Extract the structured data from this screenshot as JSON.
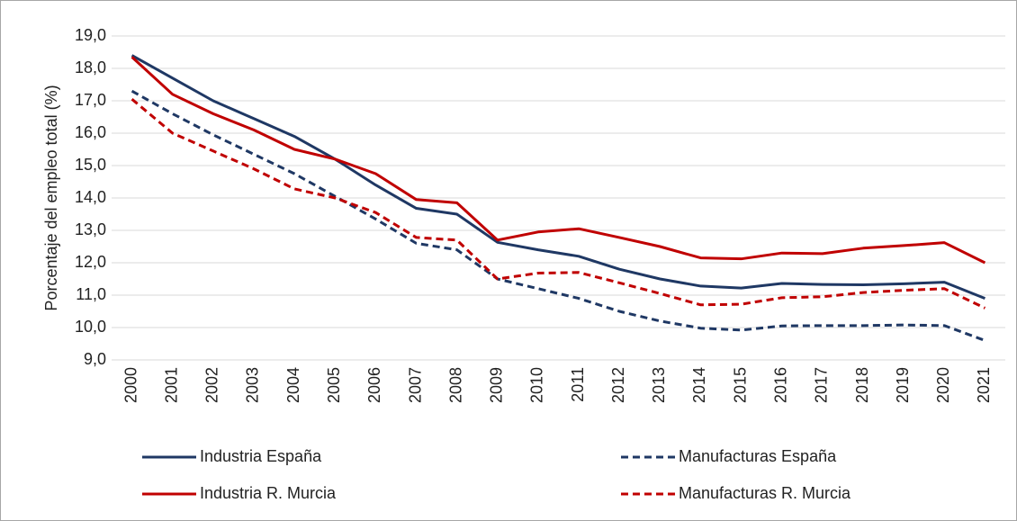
{
  "chart_data": {
    "type": "line",
    "y_label": "Porcentaje del empleo total (%)",
    "categories": [
      "2000",
      "2001",
      "2002",
      "2003",
      "2004",
      "2005",
      "2006",
      "2007",
      "2008",
      "2009",
      "2010",
      "2011",
      "2012",
      "2013",
      "2014",
      "2015",
      "2016",
      "2017",
      "2018",
      "2019",
      "2020",
      "2021"
    ],
    "series": [
      {
        "name": "Industria España",
        "color": "#1f3864",
        "dashed": false,
        "values": [
          18.4,
          17.7,
          17.0,
          16.45,
          15.9,
          15.2,
          14.4,
          13.68,
          13.5,
          12.63,
          12.4,
          12.2,
          11.8,
          11.5,
          11.28,
          11.22,
          11.36,
          11.33,
          11.32,
          11.35,
          11.4,
          10.9
        ]
      },
      {
        "name": "Manufacturas España",
        "color": "#1f3864",
        "dashed": true,
        "values": [
          17.3,
          16.6,
          15.95,
          15.35,
          14.75,
          14.05,
          13.35,
          12.6,
          12.4,
          11.5,
          11.2,
          10.9,
          10.5,
          10.2,
          9.98,
          9.92,
          10.05,
          10.06,
          10.06,
          10.08,
          10.06,
          9.6
        ]
      },
      {
        "name": "Industria R. Murcia",
        "color": "#c00000",
        "dashed": false,
        "values": [
          18.35,
          17.2,
          16.6,
          16.1,
          15.5,
          15.2,
          14.75,
          13.95,
          13.85,
          12.7,
          12.95,
          13.05,
          12.78,
          12.5,
          12.15,
          12.12,
          12.3,
          12.28,
          12.45,
          12.53,
          12.62,
          12.0
        ]
      },
      {
        "name": "Manufacturas R. Murcia",
        "color": "#c00000",
        "dashed": true,
        "values": [
          17.05,
          16.0,
          15.45,
          14.9,
          14.28,
          14.0,
          13.55,
          12.78,
          12.7,
          11.5,
          11.68,
          11.7,
          11.38,
          11.05,
          10.7,
          10.72,
          10.92,
          10.95,
          11.08,
          11.15,
          11.2,
          10.6
        ]
      }
    ],
    "ylim": [
      9,
      19
    ],
    "yticks": [
      {
        "value": 9,
        "label": "9,0"
      },
      {
        "value": 10,
        "label": "10,0"
      },
      {
        "value": 11,
        "label": "11,0"
      },
      {
        "value": 12,
        "label": "12,0"
      },
      {
        "value": 13,
        "label": "13,0"
      },
      {
        "value": 14,
        "label": "14,0"
      },
      {
        "value": 15,
        "label": "15,0"
      },
      {
        "value": 16,
        "label": "16,0"
      },
      {
        "value": 17,
        "label": "17,0"
      },
      {
        "value": 18,
        "label": "18,0"
      },
      {
        "value": 19,
        "label": "19,0"
      }
    ],
    "grid": true,
    "legend": "bottom"
  }
}
